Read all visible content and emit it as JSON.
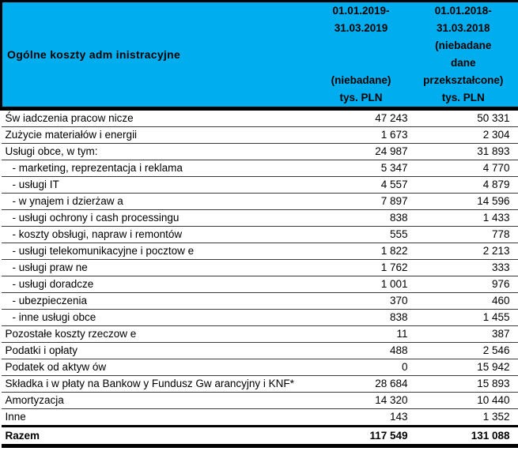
{
  "table": {
    "title": "Ogólne koszty adm inistracyjne",
    "header": {
      "background_color": "#00AEEF",
      "col_2019": {
        "lines": [
          "01.01.2019-",
          "31.03.2019",
          "",
          "",
          "(niebadane)",
          "tys. PLN"
        ]
      },
      "col_2018": {
        "lines": [
          "01.01.2018-",
          "31.03.2018",
          "(niebadane",
          "dane",
          "przekształcone)",
          "tys. PLN"
        ]
      }
    },
    "rows": [
      {
        "label": "Św iadczenia pracow nicze",
        "v_2019": "47 243",
        "v_2018": "50 331",
        "style": "main"
      },
      {
        "label": "Zużycie materiałów i energii",
        "v_2019": "1 673",
        "v_2018": "2 304",
        "style": "main"
      },
      {
        "label": "Usługi obce, w tym:",
        "v_2019": "24 987",
        "v_2018": "31 893",
        "style": "main"
      },
      {
        "label": "- marketing, reprezentacja i reklama",
        "v_2019": "5 347",
        "v_2018": "4 770",
        "style": "sub"
      },
      {
        "label": "- usługi IT",
        "v_2019": "4 557",
        "v_2018": "4 879",
        "style": "sub"
      },
      {
        "label": "- w ynajem i dzierżaw a",
        "v_2019": "7 897",
        "v_2018": "14 596",
        "style": "sub"
      },
      {
        "label": "- usługi ochrony i cash processingu",
        "v_2019": "838",
        "v_2018": "1 433",
        "style": "sub"
      },
      {
        "label": "- koszty obsługi, napraw i remontów",
        "v_2019": "555",
        "v_2018": "778",
        "style": "sub"
      },
      {
        "label": "- usługi telekomunikacyjne i pocztow e",
        "v_2019": "1 822",
        "v_2018": "2 213",
        "style": "sub"
      },
      {
        "label": "- usługi praw ne",
        "v_2019": "1 762",
        "v_2018": "333",
        "style": "sub"
      },
      {
        "label": "- usługi doradcze",
        "v_2019": "1 001",
        "v_2018": "976",
        "style": "sub"
      },
      {
        "label": "- ubezpieczenia",
        "v_2019": "370",
        "v_2018": "460",
        "style": "sub"
      },
      {
        "label": "- inne usługi obce",
        "v_2019": "838",
        "v_2018": "1 455",
        "style": "sub"
      },
      {
        "label": "Pozostałe koszty rzeczow e",
        "v_2019": "11",
        "v_2018": "387",
        "style": "main"
      },
      {
        "label": "Podatki i opłaty",
        "v_2019": "488",
        "v_2018": "2 546",
        "style": "main"
      },
      {
        "label": "Podatek od aktyw ów",
        "v_2019": "0",
        "v_2018": "15 942",
        "style": "main"
      },
      {
        "label": "Składka i w płaty na Bankow y Fundusz Gw arancyjny i KNF*",
        "v_2019": "28 684",
        "v_2018": "15 893",
        "style": "main"
      },
      {
        "label": "Amortyzacja",
        "v_2019": "14 320",
        "v_2018": "10 440",
        "style": "main"
      },
      {
        "label": "Inne",
        "v_2019": "143",
        "v_2018": "1 352",
        "style": "main"
      },
      {
        "label": "Razem",
        "v_2019": "117 549",
        "v_2018": "131 088",
        "style": "total"
      }
    ]
  }
}
